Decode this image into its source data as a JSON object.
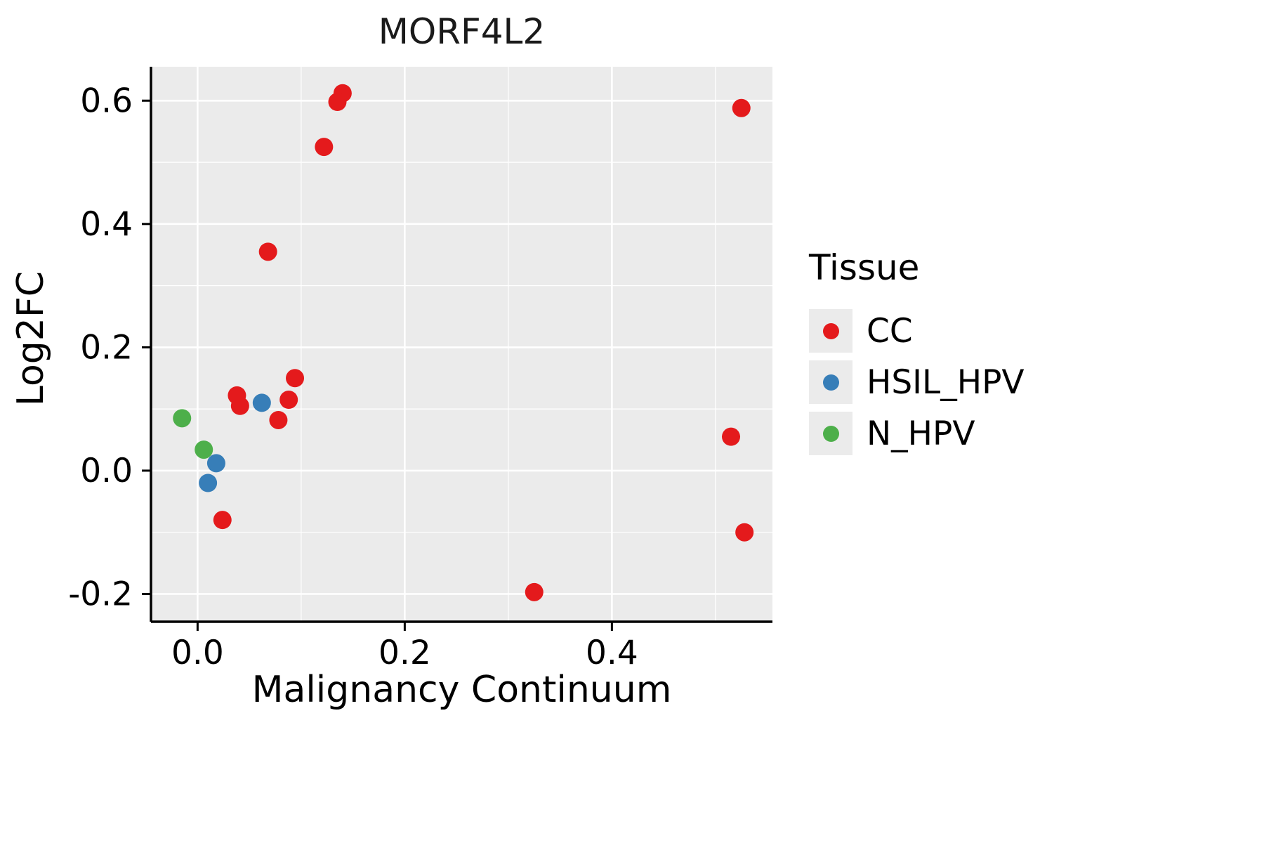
{
  "title": "MORF4L2",
  "x_axis": {
    "label": "Malignancy Continuum"
  },
  "y_axis": {
    "label": "Log2FC"
  },
  "legend": {
    "title": "Tissue",
    "items": [
      {
        "label": "CC",
        "color": "#E41A1C"
      },
      {
        "label": "HSIL_HPV",
        "color": "#377EB8"
      },
      {
        "label": "N_HPV",
        "color": "#4DAF4A"
      }
    ]
  },
  "colors": {
    "panel_background": "#EBEBEB",
    "gridline": "#FFFFFF",
    "axis_line": "#000000",
    "tick_text": "#000000"
  },
  "chart_data": {
    "type": "scatter",
    "title": "MORF4L2",
    "xlabel": "Malignancy Continuum",
    "ylabel": "Log2FC",
    "xlim": [
      -0.045,
      0.555
    ],
    "ylim": [
      -0.245,
      0.655
    ],
    "x_ticks": [
      0.0,
      0.2,
      0.4
    ],
    "x_tick_labels": [
      "0.0",
      "0.2",
      "0.4"
    ],
    "y_ticks": [
      -0.2,
      0.0,
      0.2,
      0.4,
      0.6
    ],
    "y_tick_labels": [
      "-0.2",
      "0.0",
      "0.2",
      "0.4",
      "0.6"
    ],
    "grid": true,
    "legend_position": "right",
    "series": [
      {
        "name": "CC",
        "color": "#E41A1C",
        "points": [
          [
            0.14,
            0.612
          ],
          [
            0.135,
            0.598
          ],
          [
            0.122,
            0.525
          ],
          [
            0.525,
            0.588
          ],
          [
            0.068,
            0.355
          ],
          [
            0.094,
            0.15
          ],
          [
            0.038,
            0.122
          ],
          [
            0.041,
            0.105
          ],
          [
            0.088,
            0.115
          ],
          [
            0.078,
            0.082
          ],
          [
            0.515,
            0.055
          ],
          [
            0.024,
            -0.08
          ],
          [
            0.528,
            -0.1
          ],
          [
            0.325,
            -0.197
          ]
        ]
      },
      {
        "name": "HSIL_HPV",
        "color": "#377EB8",
        "points": [
          [
            0.062,
            0.11
          ],
          [
            0.018,
            0.012
          ],
          [
            0.01,
            -0.02
          ]
        ]
      },
      {
        "name": "N_HPV",
        "color": "#4DAF4A",
        "points": [
          [
            -0.015,
            0.085
          ],
          [
            0.006,
            0.034
          ]
        ]
      }
    ]
  }
}
